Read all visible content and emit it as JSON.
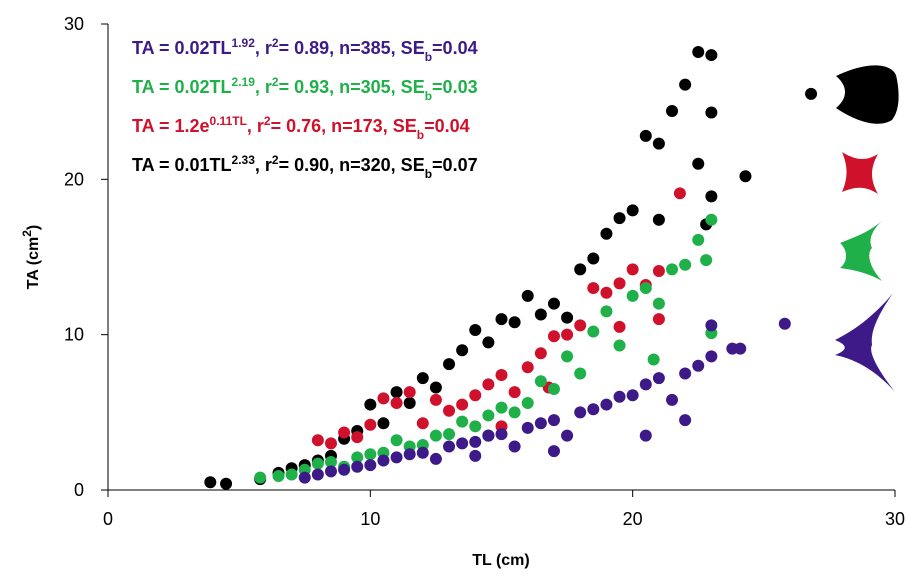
{
  "chart_data": {
    "type": "scatter",
    "xlabel": "TL (cm)",
    "ylabel": [
      {
        "text": "TA (cm"
      },
      {
        "text": "2",
        "pos": "sup"
      },
      {
        "text": ")"
      }
    ],
    "xlim": [
      0,
      30
    ],
    "xticks": [
      0,
      10,
      20,
      30
    ],
    "ylim": [
      0,
      30
    ],
    "yticks": [
      0,
      10,
      20,
      30
    ],
    "annotations": [
      {
        "color": "#3d1a87",
        "parts": [
          {
            "text": "TA = 0.02TL"
          },
          {
            "text": "1.92",
            "pos": "sup"
          },
          {
            "text": ", r"
          },
          {
            "text": "2",
            "pos": "sup"
          },
          {
            "text": "= 0.89, n=385, SE"
          },
          {
            "text": "b",
            "pos": "sub"
          },
          {
            "text": "=0.04"
          }
        ]
      },
      {
        "color": "#1fb04a",
        "parts": [
          {
            "text": "TA = 0.02TL"
          },
          {
            "text": "2.19",
            "pos": "sup"
          },
          {
            "text": ", r"
          },
          {
            "text": "2",
            "pos": "sup"
          },
          {
            "text": "= 0.93, n=305, SE"
          },
          {
            "text": "b",
            "pos": "sub"
          },
          {
            "text": "=0.03"
          }
        ]
      },
      {
        "color": "#d0112b",
        "parts": [
          {
            "text": "TA = 1.2e"
          },
          {
            "text": "0.11TL",
            "pos": "sup"
          },
          {
            "text": ", r"
          },
          {
            "text": "2",
            "pos": "sup"
          },
          {
            "text": "= 0.76, n=173, SE"
          },
          {
            "text": "b",
            "pos": "sub"
          },
          {
            "text": "=0.04"
          }
        ]
      },
      {
        "color": "#000000",
        "parts": [
          {
            "text": "TA = 0.01TL"
          },
          {
            "text": "2.33",
            "pos": "sup"
          },
          {
            "text": ", r"
          },
          {
            "text": "2",
            "pos": "sup"
          },
          {
            "text": "= 0.90, n=320, SE"
          },
          {
            "text": "b",
            "pos": "sub"
          },
          {
            "text": "=0.07"
          }
        ]
      }
    ],
    "series": [
      {
        "color": "#000000",
        "x": [
          3.9,
          4.5,
          5.8,
          6.5,
          7,
          7.5,
          8,
          8.5,
          9,
          9.5,
          10,
          10.5,
          11,
          11.5,
          12,
          12.5,
          13,
          13.5,
          14,
          14.5,
          15,
          15.5,
          16,
          16.5,
          17,
          17.5,
          18,
          18.5,
          19,
          19.5,
          20,
          20.5,
          21,
          21.5,
          22,
          22.5,
          23,
          23,
          22.5,
          23,
          24.3,
          22.8,
          26.8,
          21,
          14.5
        ],
        "values": [
          0.5,
          0.4,
          0.7,
          1.1,
          1.4,
          1.6,
          1.9,
          2.2,
          3.3,
          3.8,
          5.5,
          4.3,
          6.3,
          5.6,
          7.2,
          6.6,
          8.1,
          9,
          10.3,
          9.5,
          11,
          10.8,
          12.5,
          11.3,
          12,
          11.1,
          14.2,
          14.9,
          16.5,
          17.5,
          18,
          22.8,
          22.3,
          24.4,
          26.1,
          28.2,
          28,
          24.3,
          21,
          18.9,
          20.2,
          17.1,
          25.5,
          17.4,
          3.5
        ]
      },
      {
        "color": "#d0112b",
        "x": [
          8,
          8.5,
          9,
          9.5,
          10,
          10.5,
          11,
          11.5,
          12,
          12.5,
          13,
          13.5,
          14,
          14.5,
          15,
          15.5,
          16,
          16.5,
          17,
          17.5,
          18,
          18.5,
          19,
          19.5,
          20,
          20.5,
          21,
          21,
          21.8,
          15,
          16.8,
          19.5
        ],
        "values": [
          3.2,
          3,
          3.7,
          3.4,
          4.2,
          5.9,
          5.6,
          6.3,
          4.3,
          5.8,
          5.1,
          5.5,
          6.1,
          6.8,
          7.4,
          6.3,
          7.9,
          8.8,
          9.9,
          10,
          10.6,
          13,
          12.7,
          13.3,
          14.2,
          13.2,
          14.1,
          11,
          19.1,
          4.1,
          6.6,
          10.5
        ]
      },
      {
        "color": "#1fb04a",
        "x": [
          5.8,
          6.5,
          7,
          7.5,
          8,
          8.5,
          9,
          9.5,
          10,
          10.5,
          11,
          11.5,
          12,
          12.5,
          13,
          13.5,
          14,
          14.5,
          15,
          15.5,
          16,
          16.5,
          17,
          17.5,
          18,
          18.5,
          19,
          19.5,
          20,
          20.5,
          21,
          21.5,
          22,
          22.5,
          23,
          23,
          20.8,
          22.8
        ],
        "values": [
          0.8,
          0.9,
          1,
          1.3,
          1.7,
          1.8,
          1.5,
          2.1,
          2.3,
          2.4,
          3.2,
          2.8,
          2.9,
          3.5,
          3.6,
          4.4,
          4.1,
          4.8,
          5.3,
          5,
          5.6,
          7,
          6.5,
          8.6,
          7.5,
          10.2,
          11.5,
          9.3,
          12.5,
          13,
          12,
          14.2,
          14.5,
          16.1,
          17.4,
          10.1,
          8.4,
          14.8
        ]
      },
      {
        "color": "#3d1a87",
        "x": [
          7.5,
          8,
          8.5,
          9,
          9.5,
          10,
          10.5,
          11,
          11.5,
          12,
          12.5,
          13,
          13.5,
          14,
          14.5,
          15,
          15.5,
          16,
          16.5,
          17,
          17.5,
          18,
          18.5,
          19,
          19.5,
          20,
          20.5,
          21,
          21.5,
          22,
          22.5,
          23,
          23,
          23.8,
          24.1,
          25.8,
          20.5,
          22,
          17,
          14
        ],
        "values": [
          0.8,
          1,
          1.2,
          1.3,
          1.5,
          1.6,
          1.9,
          2.1,
          2.3,
          2.4,
          2,
          2.8,
          3,
          3.1,
          3.5,
          3.6,
          2.8,
          4,
          4.3,
          4.5,
          3.5,
          5,
          5.2,
          5.5,
          6,
          6.1,
          6.8,
          7.2,
          5.8,
          7.5,
          8,
          10.6,
          8.6,
          9.1,
          9.1,
          10.7,
          3.5,
          4.5,
          2.5,
          2.2
        ]
      }
    ]
  }
}
